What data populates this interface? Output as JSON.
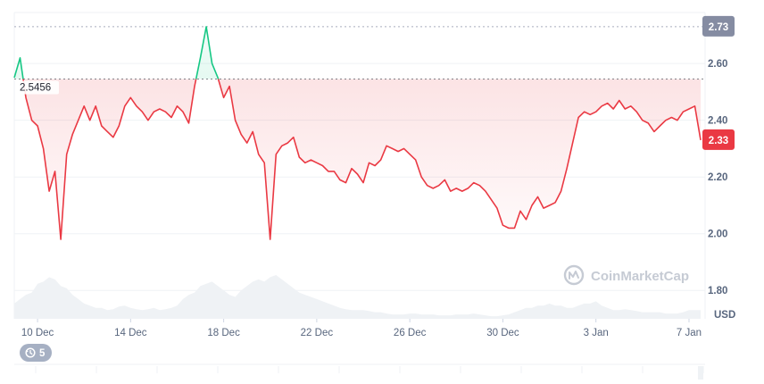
{
  "chart_data": {
    "type": "line",
    "title": "",
    "xlabel": "",
    "ylabel": "",
    "currency": "USD",
    "ylim": [
      1.7,
      2.78
    ],
    "y_ticks": [
      "1.80",
      "2.00",
      "2.20",
      "2.40",
      "2.60"
    ],
    "x_ticks": [
      "10 Dec",
      "14 Dec",
      "18 Dec",
      "22 Dec",
      "26 Dec",
      "30 Dec",
      "3 Jan",
      "7 Jan"
    ],
    "reference_price": 2.5456,
    "reference_label": "2.5456",
    "high_badge": "2.73",
    "high_value": 2.73,
    "current_badge": "2.33",
    "current_value": 2.33,
    "colors": {
      "up": "#16c784",
      "down": "#ea3943",
      "high_badge": "#858ca2",
      "volume": "#eff2f5"
    },
    "series": [
      {
        "x": [
          "9 Dec 00:00",
          "9 Dec 06:00",
          "9 Dec 12:00",
          "9 Dec 18:00",
          "10 Dec 00:00",
          "10 Dec 06:00",
          "10 Dec 12:00",
          "10 Dec 18:00",
          "11 Dec 00:00",
          "11 Dec 06:00",
          "11 Dec 12:00",
          "11 Dec 18:00",
          "12 Dec 00:00",
          "12 Dec 06:00",
          "12 Dec 12:00",
          "12 Dec 18:00",
          "13 Dec 00:00",
          "13 Dec 06:00",
          "13 Dec 12:00",
          "13 Dec 18:00",
          "14 Dec 00:00",
          "14 Dec 06:00",
          "14 Dec 12:00",
          "14 Dec 18:00",
          "15 Dec 00:00",
          "15 Dec 06:00",
          "15 Dec 12:00",
          "15 Dec 18:00",
          "16 Dec 00:00",
          "16 Dec 06:00",
          "16 Dec 12:00",
          "16 Dec 18:00",
          "17 Dec 00:00",
          "17 Dec 06:00",
          "17 Dec 12:00",
          "17 Dec 18:00",
          "18 Dec 00:00",
          "18 Dec 06:00",
          "18 Dec 12:00",
          "18 Dec 18:00",
          "19 Dec 00:00",
          "19 Dec 06:00",
          "19 Dec 12:00",
          "19 Dec 18:00",
          "20 Dec 00:00",
          "20 Dec 06:00",
          "20 Dec 12:00",
          "20 Dec 18:00",
          "21 Dec 00:00",
          "21 Dec 06:00",
          "21 Dec 12:00",
          "21 Dec 18:00",
          "22 Dec 00:00",
          "22 Dec 06:00",
          "22 Dec 12:00",
          "22 Dec 18:00",
          "23 Dec 00:00",
          "23 Dec 06:00",
          "23 Dec 12:00",
          "23 Dec 18:00",
          "24 Dec 00:00",
          "24 Dec 06:00",
          "24 Dec 12:00",
          "24 Dec 18:00",
          "25 Dec 00:00",
          "25 Dec 06:00",
          "25 Dec 12:00",
          "25 Dec 18:00",
          "26 Dec 00:00",
          "26 Dec 06:00",
          "26 Dec 12:00",
          "26 Dec 18:00",
          "27 Dec 00:00",
          "27 Dec 06:00",
          "27 Dec 12:00",
          "27 Dec 18:00",
          "28 Dec 00:00",
          "28 Dec 06:00",
          "28 Dec 12:00",
          "28 Dec 18:00",
          "29 Dec 00:00",
          "29 Dec 06:00",
          "29 Dec 12:00",
          "29 Dec 18:00",
          "30 Dec 00:00",
          "30 Dec 06:00",
          "30 Dec 12:00",
          "30 Dec 18:00",
          "31 Dec 00:00",
          "31 Dec 06:00",
          "31 Dec 12:00",
          "31 Dec 18:00",
          "1 Jan 00:00",
          "1 Jan 06:00",
          "1 Jan 12:00",
          "1 Jan 18:00",
          "2 Jan 00:00",
          "2 Jan 06:00",
          "2 Jan 12:00",
          "2 Jan 18:00",
          "3 Jan 00:00",
          "3 Jan 06:00",
          "3 Jan 12:00",
          "3 Jan 18:00",
          "4 Jan 00:00",
          "4 Jan 06:00",
          "4 Jan 12:00",
          "4 Jan 18:00",
          "5 Jan 00:00",
          "5 Jan 06:00",
          "5 Jan 12:00",
          "5 Jan 18:00",
          "6 Jan 00:00",
          "6 Jan 06:00",
          "6 Jan 12:00",
          "6 Jan 18:00",
          "7 Jan 00:00",
          "7 Jan 06:00",
          "7 Jan 12:00"
        ],
        "values": [
          2.55,
          2.62,
          2.48,
          2.4,
          2.38,
          2.3,
          2.15,
          2.22,
          1.98,
          2.28,
          2.35,
          2.4,
          2.45,
          2.4,
          2.45,
          2.38,
          2.36,
          2.34,
          2.38,
          2.45,
          2.48,
          2.45,
          2.43,
          2.4,
          2.43,
          2.44,
          2.43,
          2.41,
          2.45,
          2.43,
          2.39,
          2.52,
          2.62,
          2.73,
          2.6,
          2.55,
          2.48,
          2.52,
          2.4,
          2.35,
          2.32,
          2.36,
          2.28,
          2.25,
          1.98,
          2.28,
          2.31,
          2.32,
          2.34,
          2.27,
          2.25,
          2.26,
          2.25,
          2.24,
          2.22,
          2.22,
          2.19,
          2.18,
          2.23,
          2.21,
          2.18,
          2.25,
          2.24,
          2.26,
          2.31,
          2.3,
          2.29,
          2.3,
          2.28,
          2.26,
          2.2,
          2.17,
          2.16,
          2.17,
          2.19,
          2.15,
          2.16,
          2.15,
          2.16,
          2.18,
          2.17,
          2.15,
          2.12,
          2.09,
          2.03,
          2.02,
          2.02,
          2.08,
          2.05,
          2.1,
          2.13,
          2.09,
          2.1,
          2.11,
          2.15,
          2.23,
          2.32,
          2.41,
          2.43,
          2.42,
          2.43,
          2.45,
          2.46,
          2.44,
          2.47,
          2.44,
          2.45,
          2.43,
          2.4,
          2.39,
          2.36,
          2.38,
          2.4,
          2.41,
          2.4,
          2.43,
          2.44,
          2.45,
          2.33
        ]
      }
    ],
    "volume": [
      0.35,
      0.45,
      0.55,
      0.6,
      0.8,
      0.85,
      0.95,
      0.9,
      0.75,
      0.7,
      0.55,
      0.45,
      0.35,
      0.3,
      0.25,
      0.25,
      0.2,
      0.22,
      0.28,
      0.3,
      0.25,
      0.22,
      0.2,
      0.22,
      0.25,
      0.2,
      0.22,
      0.25,
      0.3,
      0.45,
      0.55,
      0.6,
      0.75,
      0.8,
      0.85,
      0.75,
      0.65,
      0.55,
      0.5,
      0.65,
      0.75,
      0.85,
      0.9,
      0.85,
      0.95,
      1.0,
      0.9,
      0.8,
      0.7,
      0.6,
      0.55,
      0.5,
      0.45,
      0.4,
      0.35,
      0.3,
      0.25,
      0.22,
      0.2,
      0.2,
      0.2,
      0.18,
      0.15,
      0.15,
      0.12,
      0.1,
      0.1,
      0.1,
      0.12,
      0.12,
      0.1,
      0.1,
      0.1,
      0.08,
      0.08,
      0.08,
      0.1,
      0.1,
      0.1,
      0.12,
      0.1,
      0.08,
      0.06,
      0.06,
      0.08,
      0.1,
      0.15,
      0.2,
      0.25,
      0.25,
      0.3,
      0.3,
      0.35,
      0.3,
      0.3,
      0.25,
      0.25,
      0.3,
      0.35,
      0.35,
      0.4,
      0.3,
      0.25,
      0.2,
      0.2,
      0.22,
      0.2,
      0.18,
      0.15,
      0.15,
      0.15,
      0.15,
      0.12,
      0.12,
      0.12,
      0.15,
      0.2,
      0.2,
      0.2
    ],
    "watermark": "CoinMarketCap",
    "grid": true,
    "navigator_badge": "5"
  }
}
